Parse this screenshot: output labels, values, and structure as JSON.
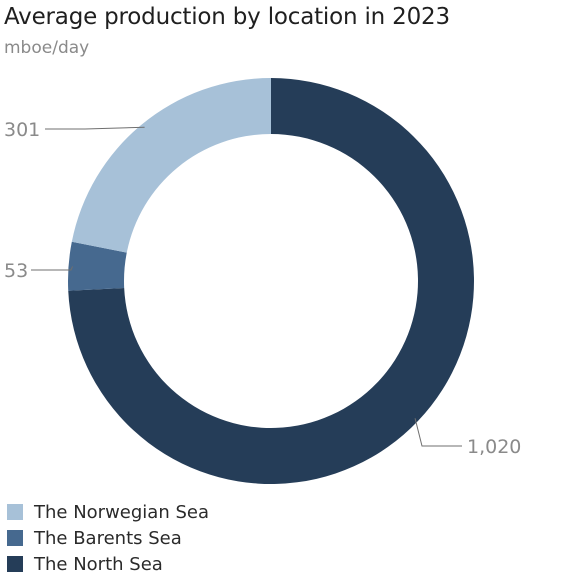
{
  "chart_data": {
    "type": "pie",
    "title": "Average production by location in 2023",
    "subtitle": "mboe/day",
    "slices": [
      {
        "label": "The North Sea",
        "value": 1020,
        "display": "1,020",
        "color": "#253d58"
      },
      {
        "label": "The Barents Sea",
        "value": 53,
        "display": "53",
        "color": "#46698f"
      },
      {
        "label": "The Norwegian Sea",
        "value": 301,
        "display": "301",
        "color": "#a7c1d8"
      }
    ],
    "legend_order": [
      "The Norwegian Sea",
      "The Barents Sea",
      "The North Sea"
    ],
    "donut": true
  }
}
